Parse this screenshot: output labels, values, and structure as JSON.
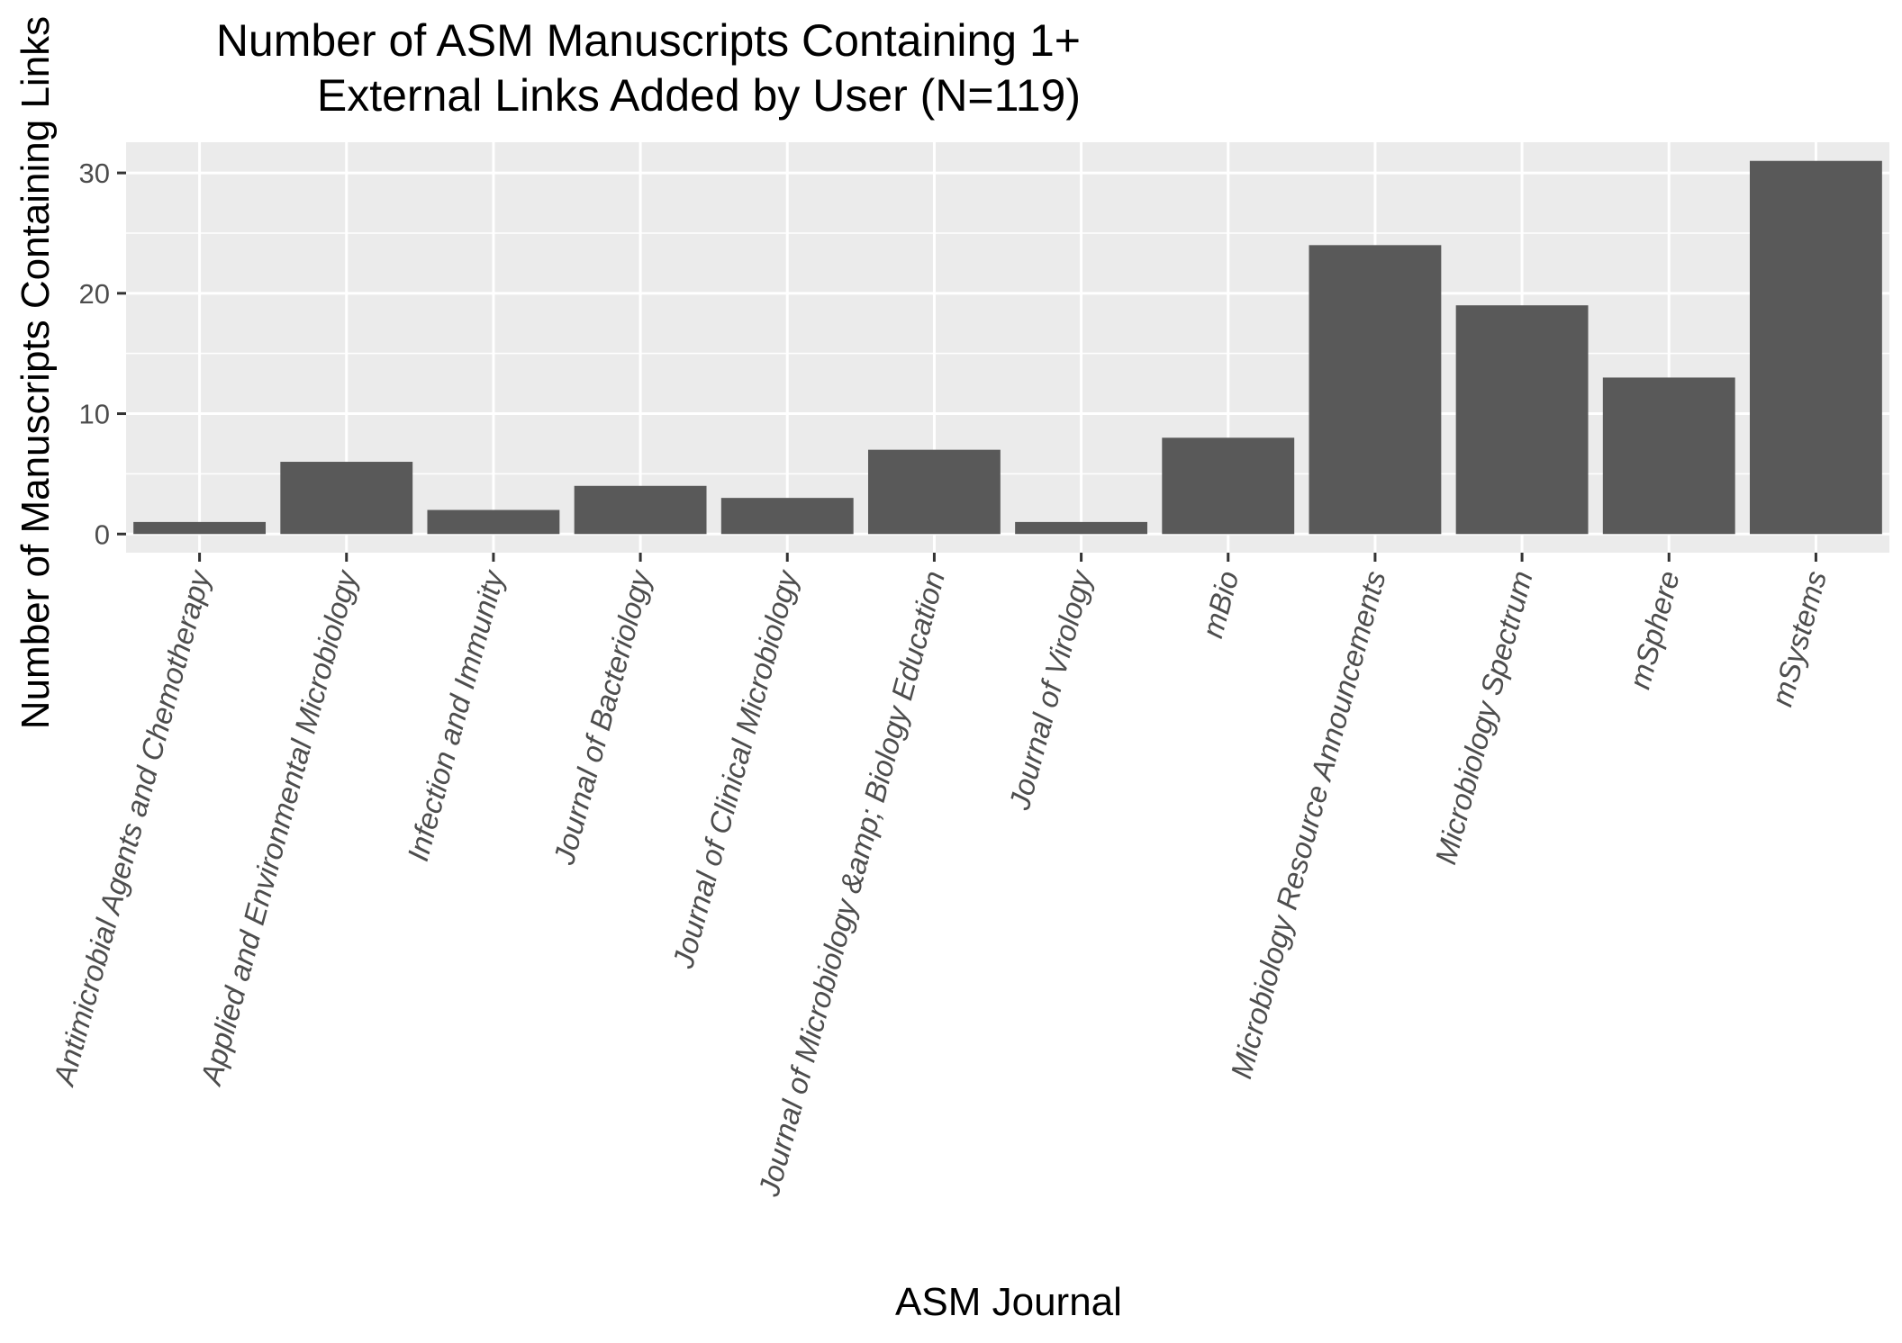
{
  "chart_data": {
    "type": "bar",
    "title_lines": [
      "Number of ASM Manuscripts Containing 1+",
      "External Links Added by User (N=119)"
    ],
    "xlabel": "ASM Journal",
    "ylabel": "Number of Manuscripts Containing Links",
    "categories": [
      "Antimicrobial Agents and Chemotherapy",
      "Applied and Environmental Microbiology",
      "Infection and Immunity",
      "Journal of Bacteriology",
      "Journal of Clinical Microbiology",
      "Journal of Microbiology &amp; Biology Education",
      "Journal of Virology",
      "mBio",
      "Microbiology Resource Announcements",
      "Microbiology Spectrum",
      "mSphere",
      "mSystems"
    ],
    "values": [
      1,
      6,
      2,
      4,
      3,
      7,
      1,
      8,
      24,
      19,
      13,
      31
    ],
    "ylim": [
      -1.55,
      32.55
    ],
    "yticks": [
      0,
      10,
      20,
      30
    ],
    "grid": true,
    "colors": {
      "bar": "#595959",
      "panel": "#ebebeb",
      "grid": "#ffffff",
      "tick_text": "#4d4d4d",
      "tick_mark": "#333333"
    }
  }
}
